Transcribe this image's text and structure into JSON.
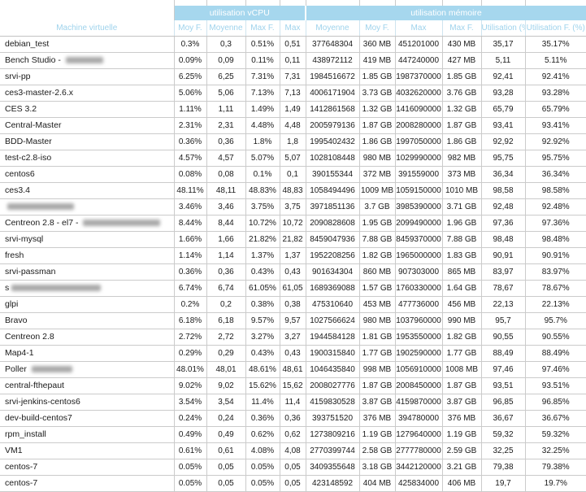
{
  "widget": {
    "type_label": "rapport utilisation machines virtuelles",
    "colors": {
      "header_band_bg": "#a6d7ee",
      "header_band_text": "#ffffff",
      "column_header_text": "#9fd3ec",
      "grid_border": "#cbcbcb",
      "body_text": "#1a1a1a",
      "background": "#ffffff"
    }
  },
  "table": {
    "name_column_header": "Machine virtuelle",
    "groups": [
      {
        "label": "utilisation vCPU",
        "span": 4
      },
      {
        "label": "utilisation mémoire",
        "span": 6
      }
    ],
    "columns": [
      "Moy F.",
      "Moyenne",
      "Max F.",
      "Max",
      "Moyenne",
      "Moy F.",
      "Max",
      "Max F.",
      "Utilisation (%)",
      "Utilisation F. (%)"
    ],
    "rows": [
      {
        "name": "debian_test",
        "redact_width": 0,
        "values": [
          "0.3%",
          "0,3",
          "0.51%",
          "0,51",
          "377648304",
          "360 MB",
          "451201000",
          "430 MB",
          "35,17",
          "35.17%"
        ]
      },
      {
        "name": "Bench Studio - ",
        "redact_width": 46,
        "values": [
          "0.09%",
          "0,09",
          "0.11%",
          "0,11",
          "438972112",
          "419 MB",
          "447240000",
          "427 MB",
          "5,11",
          "5.11%"
        ]
      },
      {
        "name": "srvi-pp",
        "redact_width": 0,
        "values": [
          "6.25%",
          "6,25",
          "7.31%",
          "7,31",
          "1984516672",
          "1.85 GB",
          "1987370000",
          "1.85 GB",
          "92,41",
          "92.41%"
        ]
      },
      {
        "name": "ces3-master-2.6.x",
        "redact_width": 0,
        "values": [
          "5.06%",
          "5,06",
          "7.13%",
          "7,13",
          "4006171904",
          "3.73 GB",
          "4032620000",
          "3.76 GB",
          "93,28",
          "93.28%"
        ]
      },
      {
        "name": "CES 3.2",
        "redact_width": 0,
        "values": [
          "1.11%",
          "1,11",
          "1.49%",
          "1,49",
          "1412861568",
          "1.32 GB",
          "1416090000",
          "1.32 GB",
          "65,79",
          "65.79%"
        ]
      },
      {
        "name": "Central-Master",
        "redact_width": 0,
        "values": [
          "2.31%",
          "2,31",
          "4.48%",
          "4,48",
          "2005979136",
          "1.87 GB",
          "2008280000",
          "1.87 GB",
          "93,41",
          "93.41%"
        ]
      },
      {
        "name": "BDD-Master",
        "redact_width": 0,
        "values": [
          "0.36%",
          "0,36",
          "1.8%",
          "1,8",
          "1995402432",
          "1.86 GB",
          "1997050000",
          "1.86 GB",
          "92,92",
          "92.92%"
        ]
      },
      {
        "name": "test-c2.8-iso",
        "redact_width": 0,
        "values": [
          "4.57%",
          "4,57",
          "5.07%",
          "5,07",
          "1028108448",
          "980 MB",
          "1029990000",
          "982 MB",
          "95,75",
          "95.75%"
        ]
      },
      {
        "name": "centos6",
        "redact_width": 0,
        "values": [
          "0.08%",
          "0,08",
          "0.1%",
          "0,1",
          "390155344",
          "372 MB",
          "391559000",
          "373 MB",
          "36,34",
          "36.34%"
        ]
      },
      {
        "name": "ces3.4",
        "redact_width": 0,
        "values": [
          "48.11%",
          "48,11",
          "48.83%",
          "48,83",
          "1058494496",
          "1009 MB",
          "1059150000",
          "1010 MB",
          "98,58",
          "98.58%"
        ]
      },
      {
        "name": "",
        "redact_width": 82,
        "values": [
          "3.46%",
          "3,46",
          "3.75%",
          "3,75",
          "3971851136",
          "3.7 GB",
          "3985390000",
          "3.71 GB",
          "92,48",
          "92.48%"
        ]
      },
      {
        "name": "Centreon 2.8  - el7   - ",
        "redact_width": 95,
        "values": [
          "8.44%",
          "8,44",
          "10.72%",
          "10,72",
          "2090828608",
          "1.95 GB",
          "2099490000",
          "1.96 GB",
          "97,36",
          "97.36%"
        ]
      },
      {
        "name": "srvi-mysql",
        "redact_width": 0,
        "values": [
          "1.66%",
          "1,66",
          "21.82%",
          "21,82",
          "8459047936",
          "7.88 GB",
          "8459370000",
          "7.88 GB",
          "98,48",
          "98.48%"
        ]
      },
      {
        "name": "fresh",
        "redact_width": 0,
        "values": [
          "1.14%",
          "1,14",
          "1.37%",
          "1,37",
          "1952208256",
          "1.82 GB",
          "1965000000",
          "1.83 GB",
          "90,91",
          "90.91%"
        ]
      },
      {
        "name": "srvi-passman",
        "redact_width": 0,
        "values": [
          "0.36%",
          "0,36",
          "0.43%",
          "0,43",
          "901634304",
          "860 MB",
          "907303000",
          "865 MB",
          "83,97",
          "83.97%"
        ]
      },
      {
        "name": "s",
        "redact_width": 110,
        "values": [
          "6.74%",
          "6,74",
          "61.05%",
          "61,05",
          "1689369088",
          "1.57 GB",
          "1760330000",
          "1.64 GB",
          "78,67",
          "78.67%"
        ]
      },
      {
        "name": "glpi",
        "redact_width": 0,
        "values": [
          "0.2%",
          "0,2",
          "0.38%",
          "0,38",
          "475310640",
          "453 MB",
          "477736000",
          "456 MB",
          "22,13",
          "22.13%"
        ]
      },
      {
        "name": "Bravo",
        "redact_width": 0,
        "values": [
          "6.18%",
          "6,18",
          "9.57%",
          "9,57",
          "1027566624",
          "980 MB",
          "1037960000",
          "990 MB",
          "95,7",
          "95.7%"
        ]
      },
      {
        "name": "Centreon 2.8",
        "redact_width": 0,
        "values": [
          "2.72%",
          "2,72",
          "3.27%",
          "3,27",
          "1944584128",
          "1.81 GB",
          "1953550000",
          "1.82 GB",
          "90,55",
          "90.55%"
        ]
      },
      {
        "name": "Map4-1",
        "redact_width": 0,
        "values": [
          "0.29%",
          "0,29",
          "0.43%",
          "0,43",
          "1900315840",
          "1.77 GB",
          "1902590000",
          "1.77 GB",
          "88,49",
          "88.49%"
        ]
      },
      {
        "name": "Poller ",
        "redact_width": 50,
        "values": [
          "48.01%",
          "48,01",
          "48.61%",
          "48,61",
          "1046435840",
          "998 MB",
          "1056910000",
          "1008 MB",
          "97,46",
          "97.46%"
        ]
      },
      {
        "name": "central-fthepaut",
        "redact_width": 0,
        "values": [
          "9.02%",
          "9,02",
          "15.62%",
          "15,62",
          "2008027776",
          "1.87 GB",
          "2008450000",
          "1.87 GB",
          "93,51",
          "93.51%"
        ]
      },
      {
        "name": "srvi-jenkins-centos6",
        "redact_width": 0,
        "values": [
          "3.54%",
          "3,54",
          "11.4%",
          "11,4",
          "4159830528",
          "3.87 GB",
          "4159870000",
          "3.87 GB",
          "96,85",
          "96.85%"
        ]
      },
      {
        "name": "dev-build-centos7",
        "redact_width": 0,
        "values": [
          "0.24%",
          "0,24",
          "0.36%",
          "0,36",
          "393751520",
          "376 MB",
          "394780000",
          "376 MB",
          "36,67",
          "36.67%"
        ]
      },
      {
        "name": "rpm_install",
        "redact_width": 0,
        "values": [
          "0.49%",
          "0,49",
          "0.62%",
          "0,62",
          "1273809216",
          "1.19 GB",
          "1279640000",
          "1.19 GB",
          "59,32",
          "59.32%"
        ]
      },
      {
        "name": "VM1",
        "redact_width": 0,
        "values": [
          "0.61%",
          "0,61",
          "4.08%",
          "4,08",
          "2770399744",
          "2.58 GB",
          "2777780000",
          "2.59 GB",
          "32,25",
          "32.25%"
        ]
      },
      {
        "name": "centos-7",
        "redact_width": 0,
        "values": [
          "0.05%",
          "0,05",
          "0.05%",
          "0,05",
          "3409355648",
          "3.18 GB",
          "3442120000",
          "3.21 GB",
          "79,38",
          "79.38%"
        ]
      },
      {
        "name": "centos-7",
        "redact_width": 0,
        "values": [
          "0.05%",
          "0,05",
          "0.05%",
          "0,05",
          "423148592",
          "404 MB",
          "425834000",
          "406 MB",
          "19,7",
          "19.7%"
        ]
      }
    ]
  }
}
